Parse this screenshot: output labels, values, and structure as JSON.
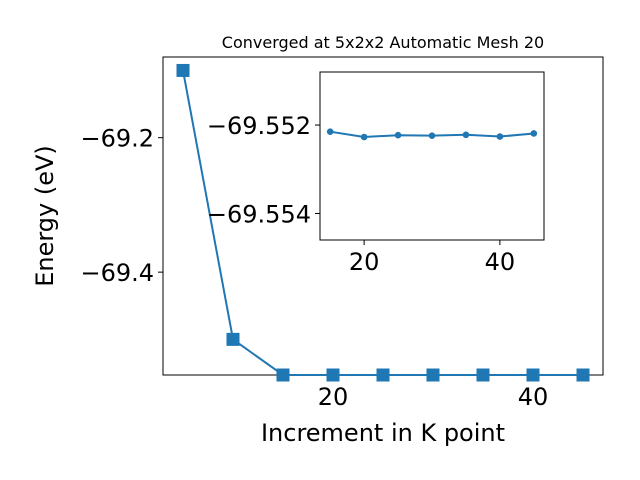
{
  "chart_data": [
    {
      "type": "line",
      "title": "Converged at 5x2x2 Automatic Mesh 20",
      "xlabel": "Increment in K point",
      "ylabel": "Energy (eV)",
      "xlim": [
        3,
        47
      ],
      "ylim": [
        -69.553,
        -69.08
      ],
      "x_ticks": [
        20,
        40
      ],
      "y_ticks": [
        -69.2,
        -69.4
      ],
      "x_tick_labels": [
        "20",
        "40"
      ],
      "y_tick_labels": [
        "−69.2",
        "−69.4"
      ],
      "grid": false,
      "marker": "square",
      "series": [
        {
          "color": "#1f77b4",
          "x": [
            5,
            10,
            15,
            20,
            25,
            30,
            35,
            40,
            45
          ],
          "y": [
            -69.1,
            -69.5,
            -69.553,
            -69.553,
            -69.553,
            -69.553,
            -69.553,
            -69.553,
            -69.553
          ]
        }
      ]
    },
    {
      "type": "line",
      "role": "inset",
      "title": "",
      "xlabel": "",
      "ylabel": "",
      "xlim": [
        13.5,
        46.5
      ],
      "ylim": [
        -69.5546,
        -69.5508
      ],
      "x_ticks": [
        20,
        40
      ],
      "y_ticks": [
        -69.554,
        -69.552
      ],
      "x_tick_labels": [
        "20",
        "40"
      ],
      "y_tick_labels": [
        "−69.554",
        "−69.552"
      ],
      "grid": false,
      "marker": "circle",
      "series": [
        {
          "color": "#1f77b4",
          "x": [
            15,
            20,
            25,
            30,
            35,
            40,
            45
          ],
          "y": [
            -69.55215,
            -69.55227,
            -69.55223,
            -69.55224,
            -69.55222,
            -69.55226,
            -69.55219
          ]
        }
      ]
    }
  ]
}
